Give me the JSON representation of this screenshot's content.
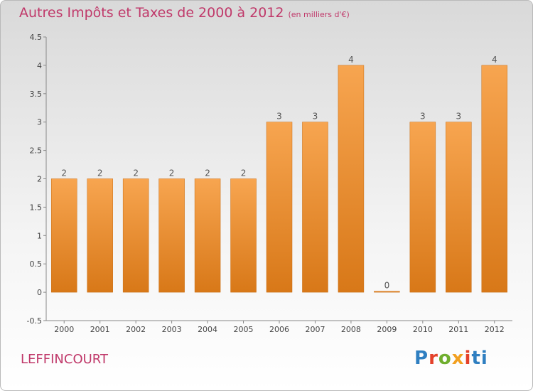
{
  "title": "Autres Impôts et Taxes de 2000 à 2012",
  "unit_note": "(en milliers d'€)",
  "commune": "LEFFINCOURT",
  "logo": {
    "letters": [
      "P",
      "r",
      "o",
      "x",
      "i",
      "ti"
    ]
  },
  "colors": {
    "title": "#c0396a",
    "bar_light": "#f7a550",
    "bar_dark": "#d87818"
  },
  "chart_data": {
    "type": "bar",
    "title": "Autres Impôts et Taxes de 2000 à 2012",
    "subtitle": "(en milliers d'€)",
    "categories": [
      "2000",
      "2001",
      "2002",
      "2003",
      "2004",
      "2005",
      "2006",
      "2007",
      "2008",
      "2009",
      "2010",
      "2011",
      "2012"
    ],
    "values": [
      2,
      2,
      2,
      2,
      2,
      2,
      3,
      3,
      4,
      0,
      3,
      3,
      4
    ],
    "data_labels": [
      "2",
      "2",
      "2",
      "2",
      "2",
      "2",
      "3",
      "3",
      "4",
      "0",
      "3",
      "3",
      "4"
    ],
    "ylim": [
      -0.5,
      4.5
    ],
    "yticks": [
      -0.5,
      0,
      0.5,
      1,
      1.5,
      2,
      2.5,
      3,
      3.5,
      4,
      4.5
    ],
    "ytick_labels": [
      "-0.5",
      "0",
      "0.5",
      "1",
      "1.5",
      "2",
      "2.5",
      "3",
      "3.5",
      "4",
      "4.5"
    ],
    "grid": false,
    "xlabel": "",
    "ylabel": ""
  }
}
